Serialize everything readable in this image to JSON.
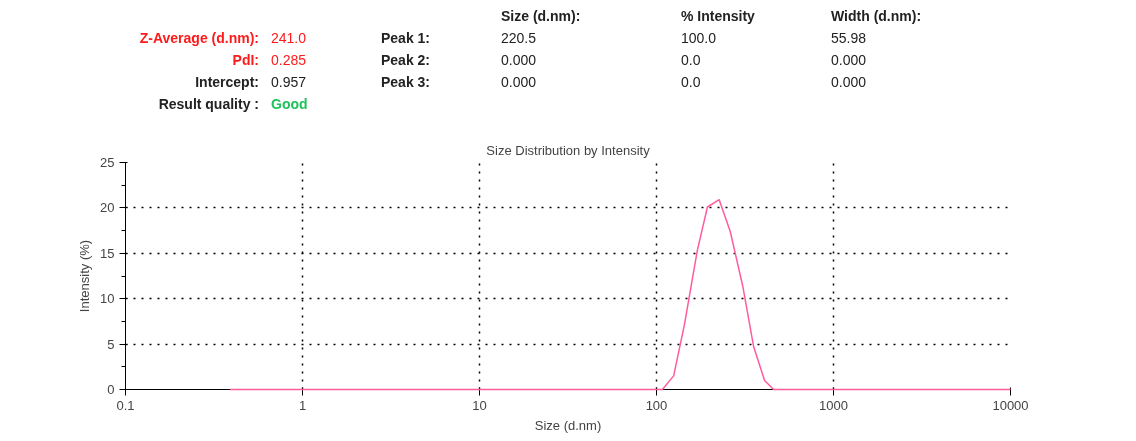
{
  "chart_data": {
    "type": "line",
    "title": "Size Distribution by Intensity",
    "xlabel": "Size (d.nm)",
    "ylabel": "Intensity (%)",
    "annotations": [
      "Size (d.nm):",
      "% Intensity",
      "Width (d.nm):",
      "Z-Average (d.nm):",
      "241.0",
      "Peak 1:",
      "220.5",
      "100.0",
      "55.98",
      "PdI:",
      "0.285",
      "Peak 2:",
      "0.000",
      "0.0",
      "0.000",
      "Intercept:",
      "0.957",
      "Peak 3:",
      "0.000",
      "0.0",
      "0.000",
      "Result quality :",
      "Good"
    ],
    "x": [
      0.39,
      1,
      10,
      100,
      108,
      125,
      144,
      170,
      194,
      226,
      261,
      307,
      354,
      408,
      459,
      1000,
      10000
    ],
    "series": [
      {
        "color": "#ff5c9d",
        "values": [
          0,
          0,
          0,
          0,
          0,
          1.5,
          7.2,
          15.3,
          20.1,
          20.9,
          17.4,
          11.4,
          4.7,
          1.0,
          0,
          0,
          0
        ]
      }
    ],
    "log": "x",
    "xlim": [
      0.1,
      10000
    ],
    "xticks": [
      0.1,
      1,
      10,
      100,
      1000,
      10000
    ],
    "ylim": [
      0,
      25
    ],
    "yticks": [
      0,
      5,
      10,
      15,
      20,
      25
    ],
    "grid": true,
    "marker": "none",
    "line_style": "solid"
  }
}
